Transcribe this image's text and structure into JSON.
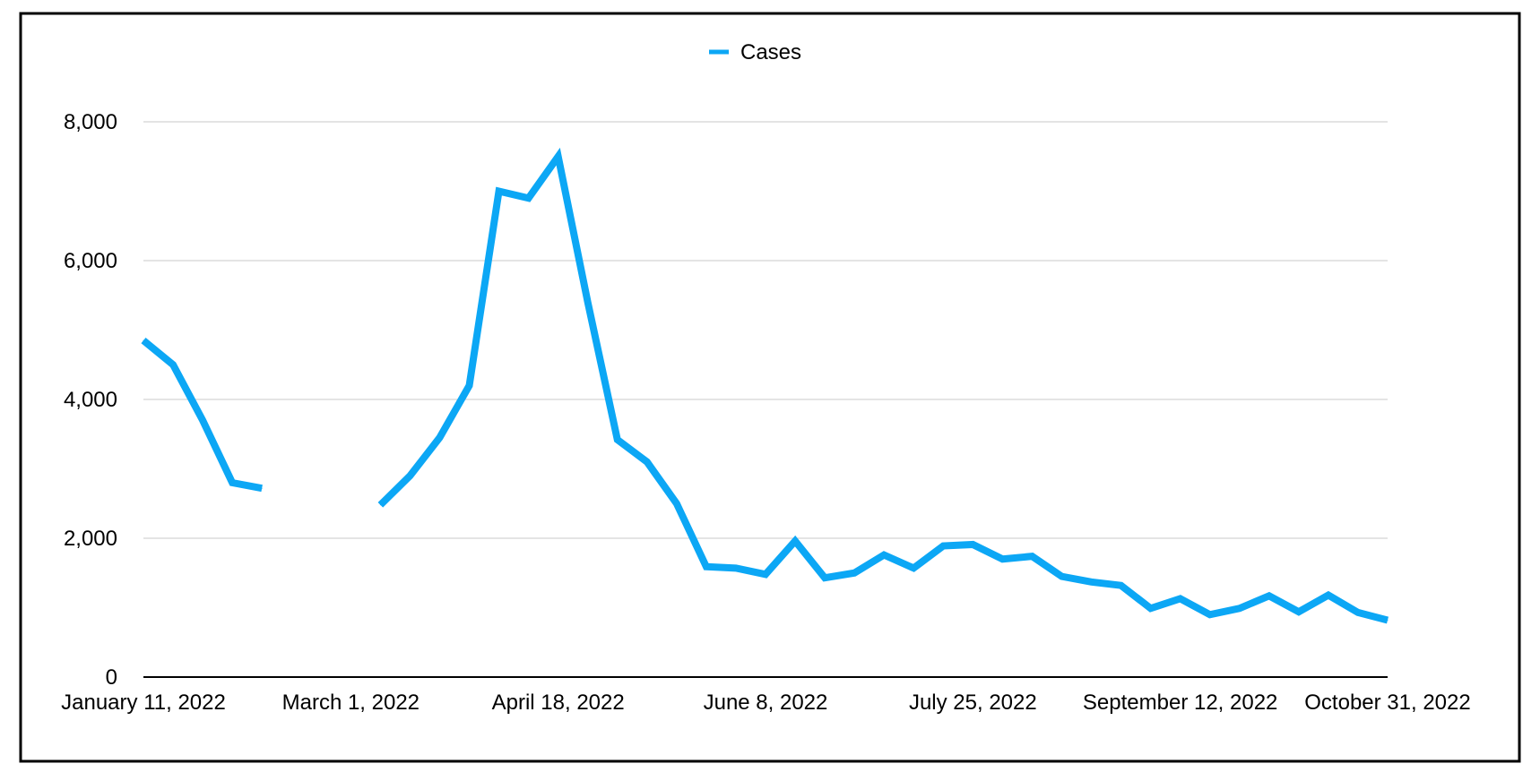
{
  "chart_data": {
    "type": "line",
    "title": "",
    "xlabel": "",
    "ylabel": "",
    "ylim": [
      0,
      8000
    ],
    "yticks": [
      0,
      2000,
      4000,
      6000,
      8000
    ],
    "ytick_labels": [
      "0",
      "2,000",
      "4,000",
      "6,000",
      "8,000"
    ],
    "grid": true,
    "legend": {
      "position": "top-center",
      "entries": [
        "Cases"
      ]
    },
    "colors": {
      "series": "#0ca7f5",
      "grid": "#c8c8c8",
      "axis": "#000000",
      "frame": "#000000"
    },
    "xtick_labels": [
      {
        "index": 0,
        "label": "January 11, 2022"
      },
      {
        "index": 7,
        "label": "March 1, 2022"
      },
      {
        "index": 14,
        "label": "April 18, 2022"
      },
      {
        "index": 21,
        "label": "June 8, 2022"
      },
      {
        "index": 28,
        "label": "July 25, 2022"
      },
      {
        "index": 35,
        "label": "September 12, 2022"
      },
      {
        "index": 42,
        "label": "October 31, 2022"
      }
    ],
    "n_points": 43,
    "series": [
      {
        "name": "Cases",
        "values": [
          4850,
          4500,
          3700,
          2800,
          2720,
          null,
          null,
          null,
          2480,
          2900,
          3450,
          4200,
          7000,
          6900,
          7500,
          5400,
          3420,
          3100,
          2500,
          1590,
          1570,
          1480,
          1960,
          1430,
          1500,
          1760,
          1570,
          1890,
          1910,
          1700,
          1740,
          1450,
          1370,
          1320,
          990,
          1130,
          900,
          990,
          1170,
          940,
          1180,
          930,
          820
        ]
      }
    ]
  }
}
